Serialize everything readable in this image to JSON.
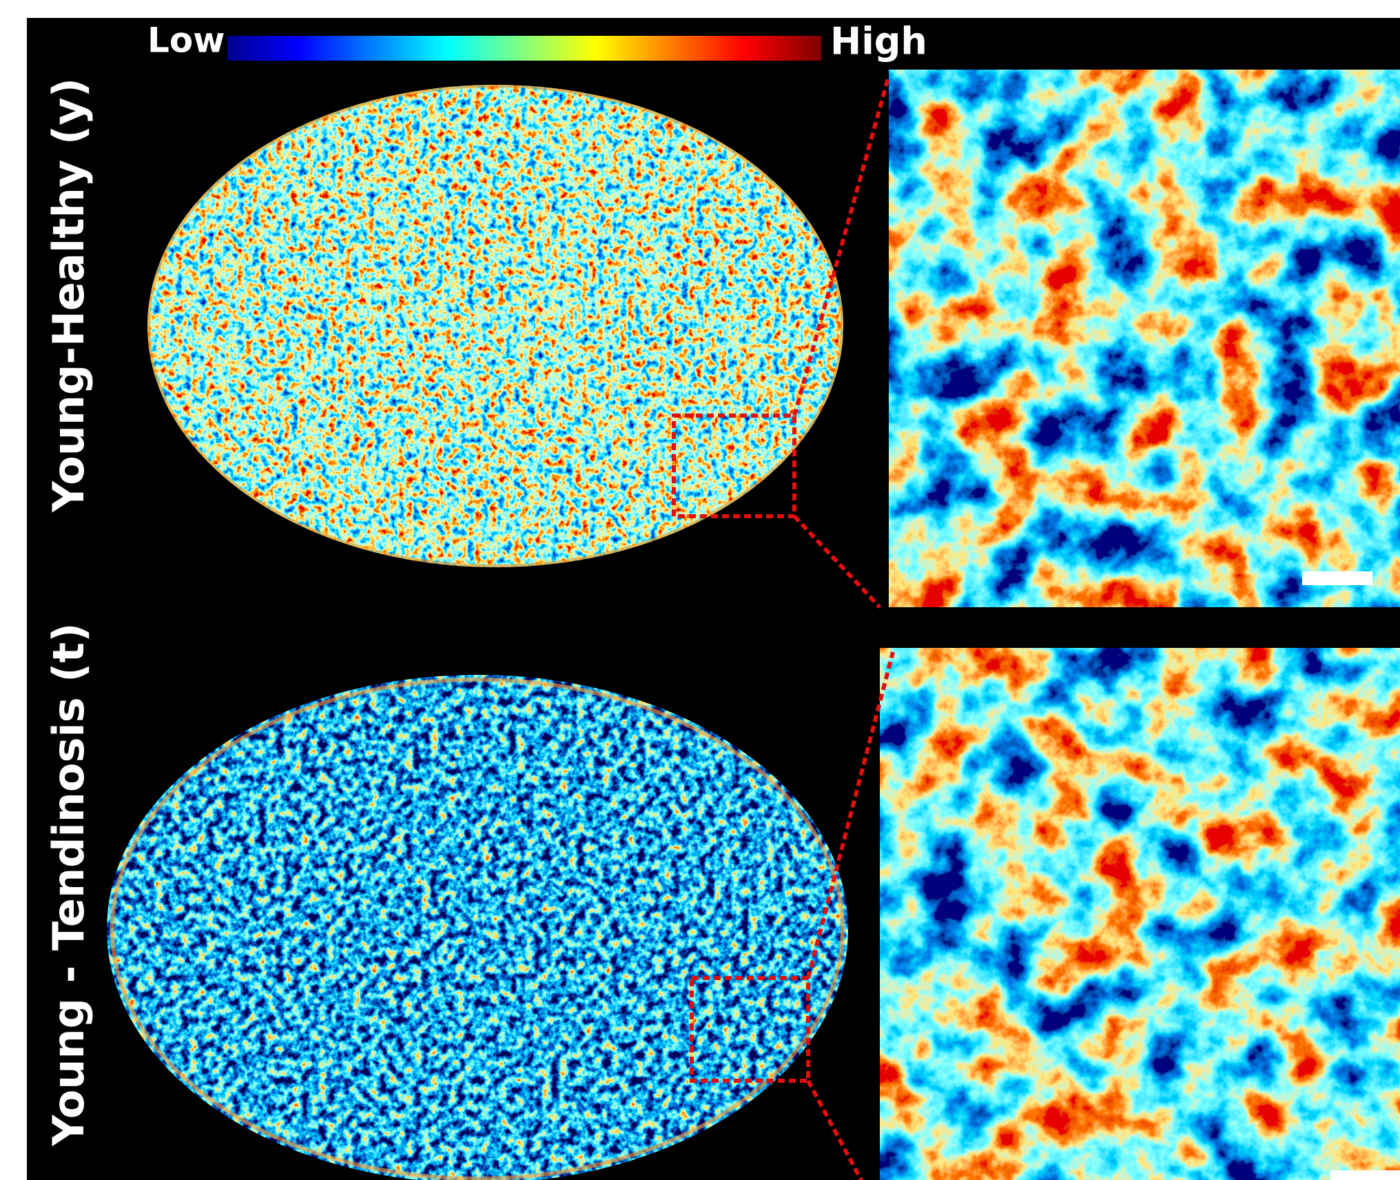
{
  "colorbar": {
    "low_label": "Low",
    "high_label": "High"
  },
  "rows": [
    {
      "label": "Young-Healthy (y)"
    },
    {
      "label": "Young - Tendinosis (t)"
    }
  ]
}
